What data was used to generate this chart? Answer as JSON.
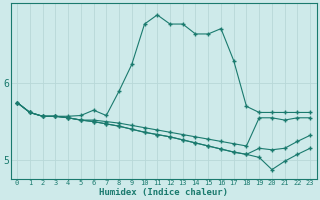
{
  "xlabel": "Humidex (Indice chaleur)",
  "bg_color": "#ceeaea",
  "grid_color": "#b8d8d8",
  "line_color": "#1a7a6e",
  "x_values": [
    0,
    1,
    2,
    3,
    4,
    5,
    6,
    7,
    8,
    9,
    10,
    11,
    12,
    13,
    14,
    15,
    16,
    17,
    18,
    19,
    20,
    21,
    22,
    23
  ],
  "line1": [
    5.75,
    5.62,
    5.57,
    5.57,
    5.57,
    5.58,
    5.65,
    5.58,
    5.9,
    6.25,
    6.78,
    6.9,
    6.78,
    6.78,
    6.65,
    6.65,
    6.72,
    6.3,
    5.7,
    5.62,
    5.62,
    5.62,
    5.62,
    5.62
  ],
  "line2": [
    5.75,
    5.62,
    5.57,
    5.57,
    5.55,
    5.52,
    5.52,
    5.5,
    5.48,
    5.45,
    5.42,
    5.39,
    5.36,
    5.33,
    5.3,
    5.27,
    5.24,
    5.21,
    5.18,
    5.55,
    5.55,
    5.52,
    5.55,
    5.55
  ],
  "line3": [
    5.75,
    5.62,
    5.57,
    5.57,
    5.55,
    5.52,
    5.5,
    5.47,
    5.44,
    5.4,
    5.36,
    5.33,
    5.3,
    5.26,
    5.22,
    5.18,
    5.14,
    5.1,
    5.07,
    5.15,
    5.13,
    5.15,
    5.24,
    5.32
  ],
  "line4": [
    5.75,
    5.62,
    5.57,
    5.57,
    5.55,
    5.52,
    5.5,
    5.47,
    5.44,
    5.4,
    5.36,
    5.33,
    5.3,
    5.26,
    5.22,
    5.18,
    5.14,
    5.1,
    5.07,
    5.03,
    4.87,
    4.98,
    5.07,
    5.15
  ],
  "ylim": [
    4.75,
    7.05
  ],
  "yticks": [
    5.0,
    6.0
  ],
  "xticks": [
    0,
    1,
    2,
    3,
    4,
    5,
    6,
    7,
    8,
    9,
    10,
    11,
    12,
    13,
    14,
    15,
    16,
    17,
    18,
    19,
    20,
    21,
    22,
    23
  ],
  "figsize": [
    3.2,
    2.0
  ],
  "dpi": 100
}
